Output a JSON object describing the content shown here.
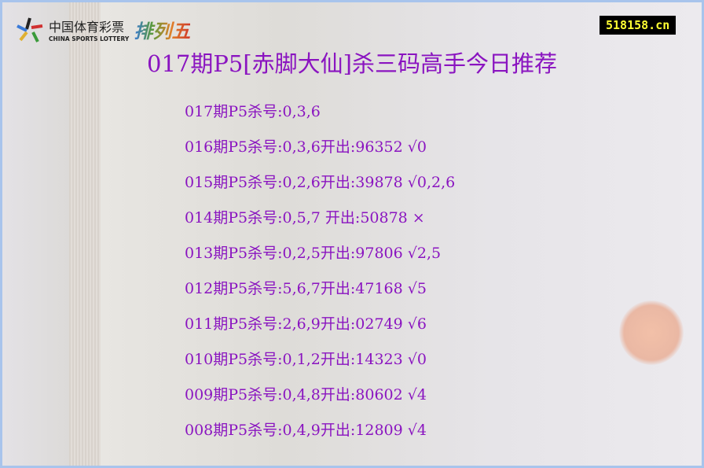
{
  "logo": {
    "cn": "中国体育彩票",
    "en": "CHINA SPORTS LOTTERY",
    "game": "排列五"
  },
  "site": "518158.cn",
  "title": "017期P5[赤脚大仙]杀三码高手今日推荐",
  "rows": [
    "017期P5杀号:0,3,6",
    "016期P5杀号:0,3,6开出:96352 √0",
    "015期P5杀号:0,2,6开出:39878 √0,2,6",
    "014期P5杀号:0,5,7 开出:50878 ×",
    "013期P5杀号:0,2,5开出:97806 √2,5",
    "012期P5杀号:5,6,7开出:47168 √5",
    "011期P5杀号:2,6,9开出:02749 √6",
    "010期P5杀号:0,1,2开出:14323 √0",
    "009期P5杀号:0,4,8开出:80602 √4",
    "008期P5杀号:0,4,9开出:12809 √4"
  ]
}
